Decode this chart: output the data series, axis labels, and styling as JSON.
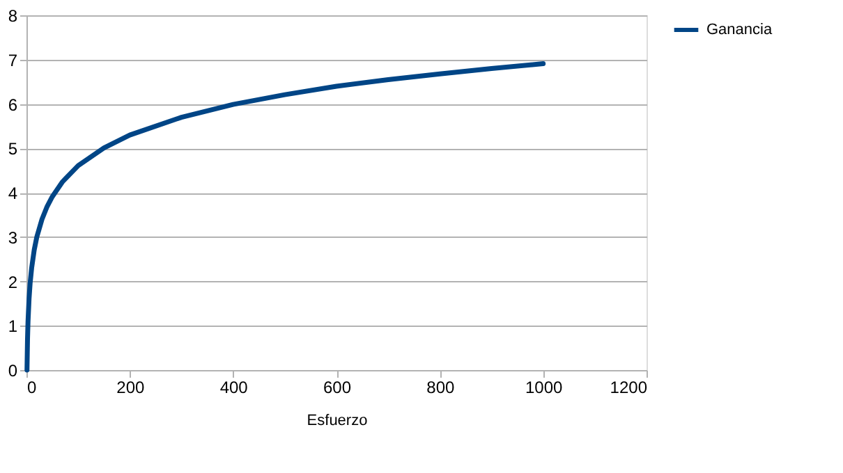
{
  "chart_data": {
    "type": "line",
    "xlabel": "Esfuerzo",
    "xlim": [
      0,
      1200
    ],
    "xticks": [
      0,
      200,
      400,
      600,
      800,
      1000,
      1200
    ],
    "ylim": [
      0,
      8
    ],
    "yticks": [
      0,
      1,
      2,
      3,
      4,
      5,
      6,
      7,
      8
    ],
    "grid": "y",
    "legend": "right",
    "marker": "none",
    "line_style": "solid",
    "series": [
      {
        "name": "Ganancia",
        "color": "#004586",
        "x": [
          1,
          2,
          3,
          5,
          7,
          10,
          15,
          20,
          30,
          40,
          50,
          70,
          100,
          150,
          200,
          300,
          400,
          500,
          600,
          700,
          800,
          900,
          1000
        ],
        "values": [
          0,
          0.69,
          1.1,
          1.61,
          1.95,
          2.3,
          2.71,
          3.0,
          3.4,
          3.69,
          3.91,
          4.25,
          4.61,
          5.01,
          5.3,
          5.7,
          5.99,
          6.21,
          6.4,
          6.55,
          6.68,
          6.8,
          6.91
        ]
      }
    ]
  }
}
